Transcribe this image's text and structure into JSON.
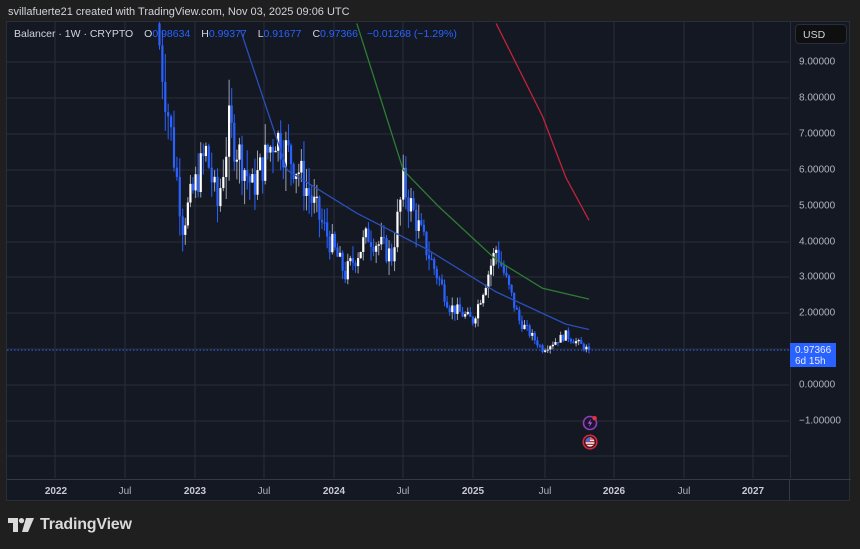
{
  "credit": "svillafuerte21 created with TradingView.com, Nov 03, 2025 09:06 UTC",
  "legend": {
    "symbol": "Balancer · 1W · CRYPTO",
    "open_label": "O",
    "open": "0.98634",
    "high_label": "H",
    "high": "0.99377",
    "low_label": "L",
    "low": "0.91677",
    "close_label": "C",
    "close": "0.97366",
    "change": "−0.01268 (−1.29%)"
  },
  "currency_button": "USD",
  "price_tag": {
    "price": "0.97366",
    "countdown": "6d 15h"
  },
  "brand": "TradingView",
  "colors": {
    "background": "#141823",
    "up_candle": "#ffffff",
    "down_candle": "#2962ff",
    "ma_blue": "#2a4fb8",
    "ma_green": "#2e7d32",
    "ma_red": "#c2243a",
    "grid": "#2a2e39"
  },
  "chart_data": {
    "type": "candlestick",
    "title": "Balancer · 1W · CRYPTO",
    "interval": "1W",
    "currency": "USD",
    "ylabel": "USD",
    "ylim": [
      -1.9,
      10.1
    ],
    "y_ticks": [
      "9.00000",
      "8.00000",
      "7.00000",
      "6.00000",
      "5.00000",
      "4.00000",
      "3.00000",
      "2.00000",
      "0.00000",
      "−1.00000"
    ],
    "x_ticks": [
      "2022",
      "Jul",
      "2023",
      "Jul",
      "2024",
      "Jul",
      "2025",
      "Jul",
      "2026",
      "Jul",
      "2027"
    ],
    "grid": true,
    "last_ohlc": {
      "open": 0.98634,
      "high": 0.99377,
      "low": 0.91677,
      "close": 0.97366,
      "change": -0.01268,
      "change_pct": -1.29
    },
    "approx_price_path": [
      {
        "date": "2022-10",
        "price": 9.5
      },
      {
        "date": "2022-11",
        "price": 7.0
      },
      {
        "date": "2022-12",
        "price": 4.5
      },
      {
        "date": "2023-02",
        "price": 6.5
      },
      {
        "date": "2023-03",
        "price": 5.0
      },
      {
        "date": "2023-04",
        "price": 7.2
      },
      {
        "date": "2023-06",
        "price": 5.5
      },
      {
        "date": "2023-08",
        "price": 7.0
      },
      {
        "date": "2023-10",
        "price": 6.0
      },
      {
        "date": "2023-12",
        "price": 4.5
      },
      {
        "date": "2024-02",
        "price": 3.1
      },
      {
        "date": "2024-04",
        "price": 4.2
      },
      {
        "date": "2024-06",
        "price": 3.6
      },
      {
        "date": "2024-07",
        "price": 5.6
      },
      {
        "date": "2024-09",
        "price": 3.8
      },
      {
        "date": "2024-11",
        "price": 2.2
      },
      {
        "date": "2025-01",
        "price": 1.8
      },
      {
        "date": "2025-03",
        "price": 3.8
      },
      {
        "date": "2025-05",
        "price": 1.8
      },
      {
        "date": "2025-07",
        "price": 1.0
      },
      {
        "date": "2025-09",
        "price": 1.4
      },
      {
        "date": "2025-11",
        "price": 0.97366
      }
    ],
    "series": [
      {
        "name": "Moving Average (blue)",
        "color": "#2a4fb8",
        "approx_values": [
          {
            "date": "2023-05",
            "v": 9.9
          },
          {
            "date": "2023-09",
            "v": 6.0
          },
          {
            "date": "2024-03",
            "v": 4.8
          },
          {
            "date": "2024-09",
            "v": 3.8
          },
          {
            "date": "2025-03",
            "v": 2.6
          },
          {
            "date": "2025-09",
            "v": 1.7
          },
          {
            "date": "2025-11",
            "v": 1.55
          }
        ]
      },
      {
        "name": "Moving Average (green)",
        "color": "#2e7d32",
        "approx_values": [
          {
            "date": "2024-03",
            "v": 10.1
          },
          {
            "date": "2024-07",
            "v": 6.0
          },
          {
            "date": "2024-10",
            "v": 5.0
          },
          {
            "date": "2025-03",
            "v": 3.5
          },
          {
            "date": "2025-07",
            "v": 2.7
          },
          {
            "date": "2025-11",
            "v": 2.4
          }
        ]
      },
      {
        "name": "Moving Average (red)",
        "color": "#c2243a",
        "approx_values": [
          {
            "date": "2025-03",
            "v": 10.1
          },
          {
            "date": "2025-07",
            "v": 7.5
          },
          {
            "date": "2025-09",
            "v": 5.8
          },
          {
            "date": "2025-11",
            "v": 4.6
          }
        ]
      }
    ],
    "annotations": [
      "current price 0.97366",
      "bar countdown 6d 15h"
    ]
  }
}
